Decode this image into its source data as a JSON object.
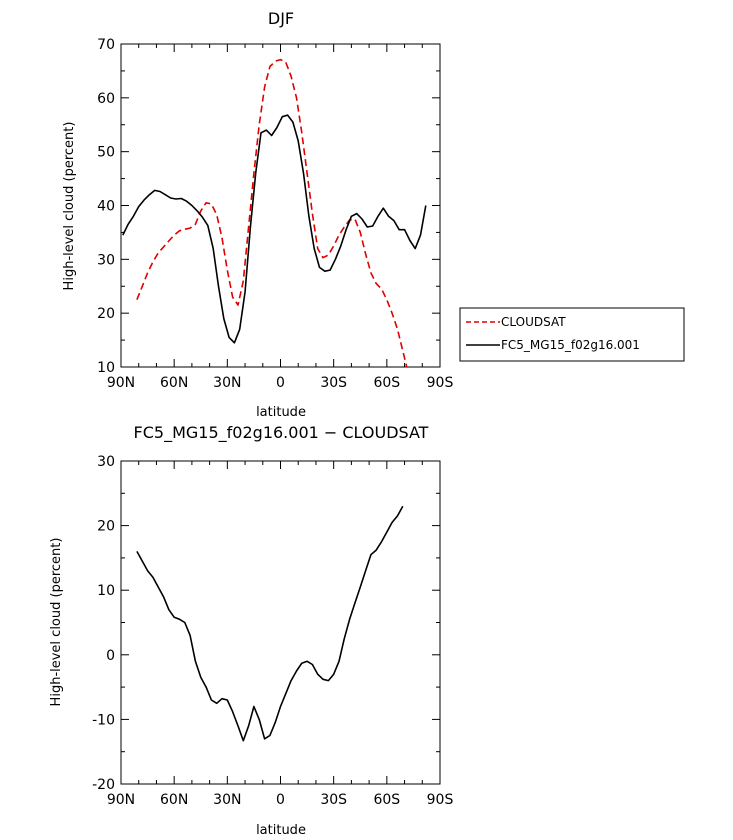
{
  "chart_data": [
    {
      "type": "line",
      "title": "DJF",
      "xlabel": "latitude",
      "ylabel": "High-level cloud (percent)",
      "xlim": [
        -90,
        90
      ],
      "ylim": [
        10,
        70
      ],
      "x_ticks": [
        -90,
        -60,
        -30,
        0,
        30,
        60,
        90
      ],
      "x_tick_labels": [
        "90N",
        "60N",
        "30N",
        "0",
        "30S",
        "60S",
        "90S"
      ],
      "y_ticks": [
        10,
        20,
        30,
        40,
        50,
        60,
        70
      ],
      "grid": false,
      "legend_position": "right",
      "series": [
        {
          "name": "CLOUDSAT",
          "color": "#e00000",
          "dash": "dashed",
          "x": [
            -81,
            -78,
            -75,
            -72,
            -69,
            -66,
            -63,
            -60,
            -57,
            -54,
            -51,
            -48,
            -45,
            -42,
            -39,
            -36,
            -33,
            -30,
            -27,
            -24,
            -21,
            -18,
            -15,
            -12,
            -9,
            -6,
            -3,
            0,
            3,
            6,
            9,
            12,
            15,
            18,
            21,
            24,
            27,
            30,
            33,
            36,
            39,
            42,
            45,
            48,
            51,
            54,
            57,
            60,
            63,
            66,
            69,
            72,
            75,
            78,
            81
          ],
          "y": [
            22.5,
            25,
            27.5,
            29.5,
            31.2,
            32.3,
            33.4,
            34.5,
            35.3,
            35.6,
            35.8,
            36.5,
            39,
            40.5,
            40.3,
            38.3,
            34,
            28,
            23,
            21.5,
            26,
            36,
            46,
            55,
            62,
            65.8,
            66.8,
            67.1,
            66.6,
            64,
            60,
            53.5,
            46,
            38.5,
            32,
            30.3,
            30.8,
            32.5,
            34.5,
            36,
            37.3,
            37.5,
            35,
            31,
            27.5,
            25.5,
            24.5,
            22.5,
            20,
            17,
            13,
            9,
            null,
            null,
            null
          ]
        },
        {
          "name": "FC5_MG15_f02g16.001",
          "color": "#000000",
          "dash": "solid",
          "x": [
            -89,
            -86,
            -83,
            -80,
            -77,
            -74,
            -71,
            -68,
            -65,
            -62,
            -59,
            -56,
            -53,
            -50,
            -47,
            -44,
            -41,
            -38,
            -35,
            -32,
            -29,
            -26,
            -23,
            -20,
            -17,
            -14,
            -11,
            -8,
            -5,
            -2,
            1,
            4,
            7,
            10,
            13,
            16,
            19,
            22,
            25,
            28,
            31,
            34,
            37,
            40,
            43,
            46,
            49,
            52,
            55,
            58,
            61,
            64,
            67,
            70,
            73,
            76,
            79,
            82,
            85,
            88
          ],
          "y": [
            34.5,
            36.5,
            38,
            39.8,
            41,
            42,
            42.8,
            42.6,
            42,
            41.4,
            41.2,
            41.3,
            40.8,
            40,
            39,
            37.8,
            36.3,
            32,
            25,
            19,
            15.5,
            14.5,
            17,
            24,
            36,
            46,
            53.5,
            54,
            53,
            54.5,
            56.5,
            56.8,
            55.5,
            52,
            46,
            38,
            32,
            28.5,
            27.8,
            28,
            30,
            32.5,
            35.5,
            38,
            38.5,
            37.5,
            36,
            36.2,
            38,
            39.5,
            38,
            37.2,
            35.5,
            35.5,
            33.5,
            32,
            34.5,
            40,
            null,
            null
          ]
        }
      ]
    },
    {
      "type": "line",
      "title": "FC5_MG15_f02g16.001 − CLOUDSAT",
      "xlabel": "latitude",
      "ylabel": "High-level cloud (percent)",
      "xlim": [
        -90,
        90
      ],
      "ylim": [
        -20,
        30
      ],
      "x_ticks": [
        -90,
        -60,
        -30,
        0,
        30,
        60,
        90
      ],
      "x_tick_labels": [
        "90N",
        "60N",
        "30N",
        "0",
        "30S",
        "60S",
        "90S"
      ],
      "y_ticks": [
        -20,
        -10,
        0,
        10,
        20,
        30
      ],
      "grid": false,
      "series": [
        {
          "color": "#000000",
          "dash": "solid",
          "x": [
            -81,
            -78,
            -75,
            -72,
            -69,
            -66,
            -63,
            -60,
            -57,
            -54,
            -51,
            -48,
            -45,
            -42,
            -39,
            -36,
            -33,
            -30,
            -27,
            -24,
            -21,
            -18,
            -15,
            -12,
            -9,
            -6,
            -3,
            0,
            3,
            6,
            9,
            12,
            15,
            18,
            21,
            24,
            27,
            30,
            33,
            36,
            39,
            42,
            45,
            48,
            51,
            54,
            57,
            60,
            63,
            66,
            69,
            72,
            75,
            78,
            81
          ],
          "y": [
            16,
            14.5,
            13,
            12,
            10.5,
            9,
            7,
            5.8,
            5.5,
            5,
            3,
            -1,
            -3.5,
            -5,
            -7,
            -7.5,
            -6.8,
            -7,
            -8.8,
            -11,
            -13.3,
            -11,
            -8,
            -10,
            -13,
            -12.5,
            -10.5,
            -8,
            -6,
            -4,
            -2.5,
            -1.3,
            -1,
            -1.5,
            -3,
            -3.8,
            -4,
            -3,
            -1,
            2.5,
            5.5,
            8,
            10.5,
            13,
            15.5,
            16.2,
            17.5,
            19,
            20.5,
            21.5,
            23,
            null,
            null,
            null,
            null
          ]
        }
      ]
    }
  ]
}
